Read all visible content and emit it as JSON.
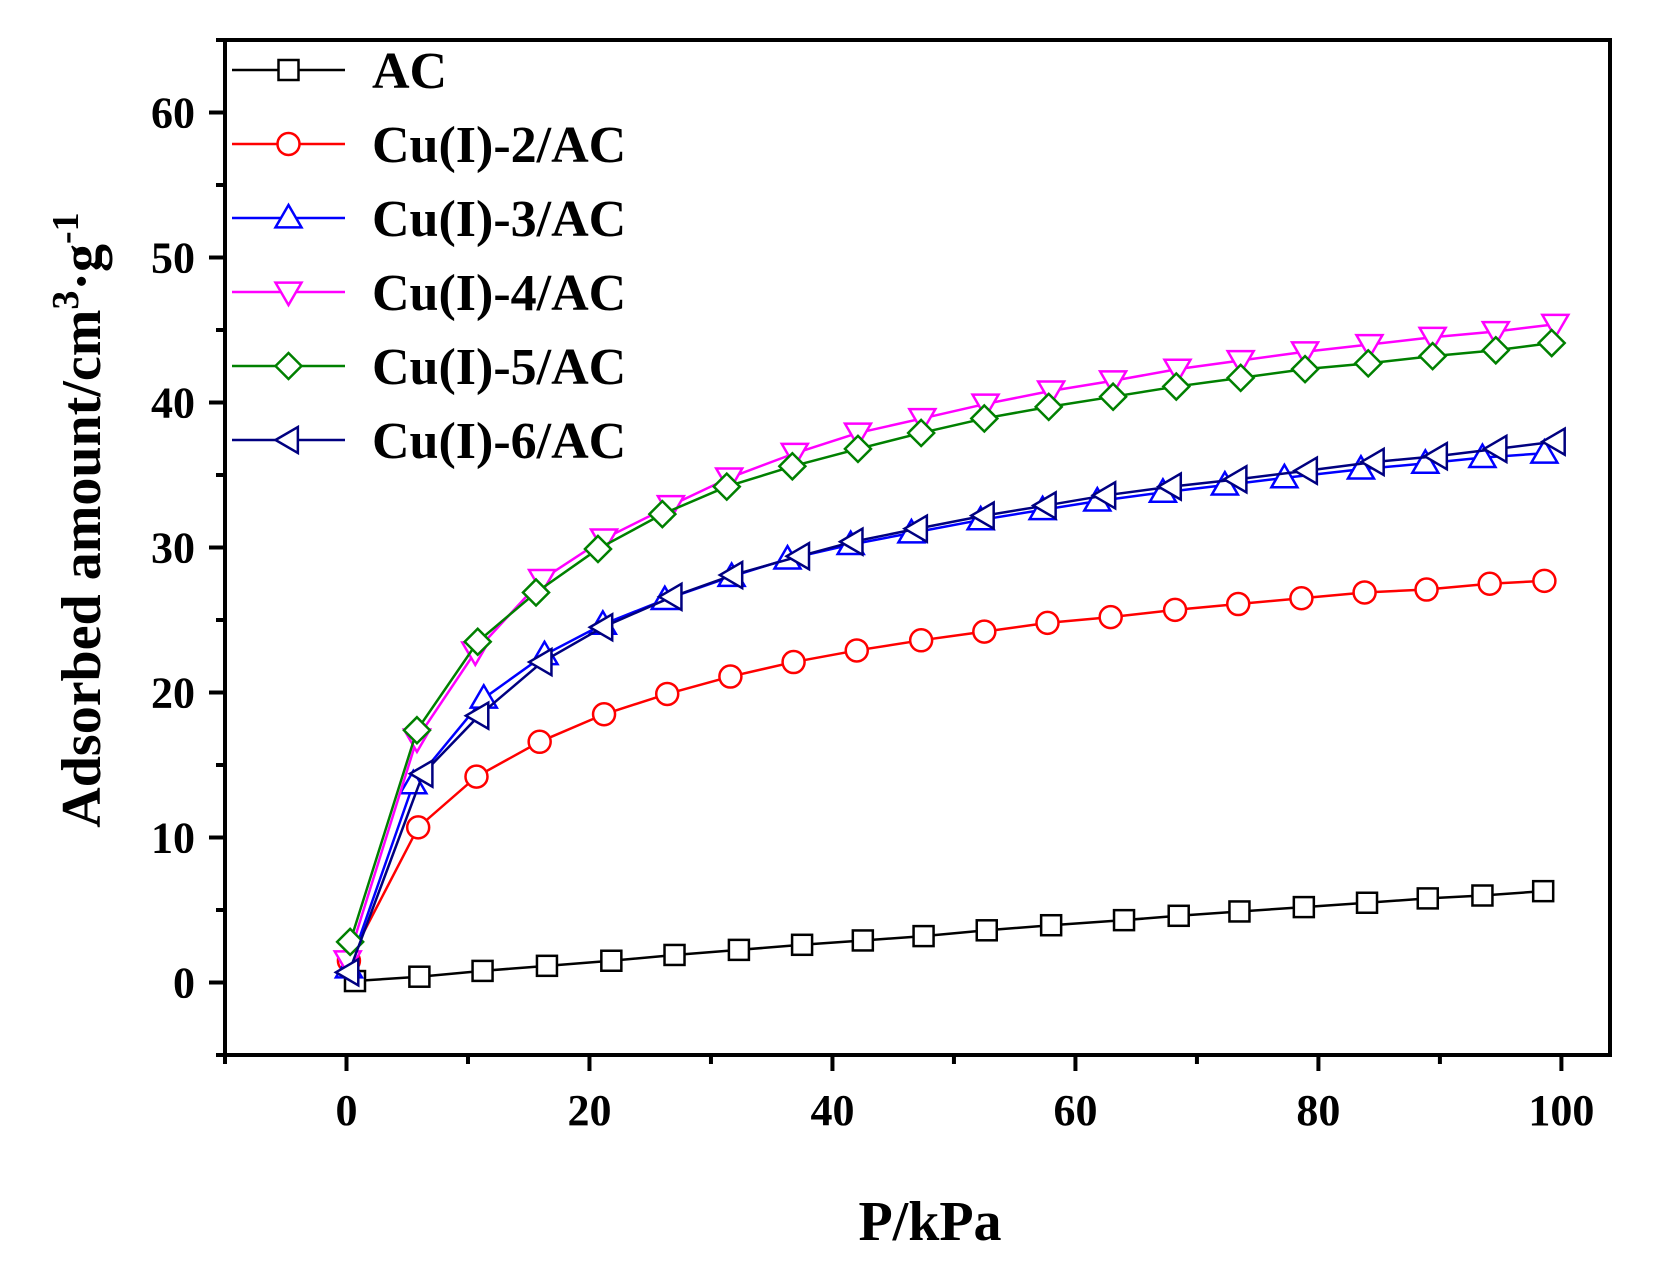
{
  "chart_data": {
    "type": "line",
    "title": "",
    "xlabel": "P/kPa",
    "ylabel": {
      "main": "Adsorbed amount/cm",
      "sup1": "3",
      "mid": "·g",
      "sup2": "-1"
    },
    "xlim": [
      -10,
      104
    ],
    "ylim": [
      -5,
      65
    ],
    "xticks": [
      0,
      20,
      40,
      60,
      80,
      100
    ],
    "yticks": [
      0,
      10,
      20,
      30,
      40,
      50,
      60
    ],
    "legend_position": "top-left",
    "grid": false,
    "series": [
      {
        "name": "AC",
        "color": "#000000",
        "marker": "square",
        "x": [
          0.7,
          6,
          11.2,
          16.5,
          21.8,
          27,
          32.3,
          37.5,
          42.5,
          47.5,
          52.7,
          58,
          64,
          68.5,
          73.5,
          78.8,
          84,
          89,
          93.5,
          98.5
        ],
        "y": [
          0.1,
          0.4,
          0.8,
          1.15,
          1.5,
          1.9,
          2.25,
          2.6,
          2.9,
          3.2,
          3.6,
          3.95,
          4.3,
          4.6,
          4.9,
          5.2,
          5.5,
          5.8,
          6.0,
          6.3
        ]
      },
      {
        "name": "Cu(I)-2/AC",
        "color": "#ff0000",
        "marker": "circle",
        "x": [
          0.2,
          5.9,
          10.7,
          15.9,
          21.2,
          26.4,
          31.6,
          36.8,
          42,
          47.3,
          52.5,
          57.7,
          62.9,
          68.2,
          73.4,
          78.6,
          83.8,
          88.9,
          94.1,
          98.6
        ],
        "y": [
          1.5,
          10.7,
          14.2,
          16.6,
          18.5,
          19.9,
          21.1,
          22.1,
          22.9,
          23.6,
          24.2,
          24.8,
          25.2,
          25.7,
          26.1,
          26.5,
          26.9,
          27.1,
          27.5,
          27.7
        ]
      },
      {
        "name": "Cu(I)-3/AC",
        "color": "#0000ff",
        "marker": "triangle-up",
        "x": [
          0.2,
          5.5,
          11.3,
          16.3,
          21.1,
          26.2,
          31.7,
          36.3,
          41.5,
          46.5,
          52.2,
          57.3,
          61.8,
          67.2,
          72.3,
          77.2,
          83.5,
          88.8,
          93.5,
          98.6
        ],
        "y": [
          1.0,
          13.7,
          19.6,
          22.6,
          24.7,
          26.4,
          28.0,
          29.2,
          30.2,
          31.0,
          31.9,
          32.6,
          33.2,
          33.8,
          34.3,
          34.8,
          35.4,
          35.8,
          36.2,
          36.5
        ]
      },
      {
        "name": "Cu(I)-4/AC",
        "color": "#ff00ff",
        "marker": "triangle-down",
        "x": [
          0.1,
          5.8,
          10.6,
          16.1,
          21.2,
          26.7,
          31.5,
          36.9,
          42.1,
          47.4,
          52.6,
          58,
          63.1,
          68.4,
          73.6,
          78.9,
          84.2,
          89.4,
          94.6,
          99.5
        ],
        "y": [
          1.5,
          16.8,
          22.8,
          27.8,
          30.6,
          32.9,
          34.8,
          36.5,
          37.9,
          38.9,
          39.9,
          40.8,
          41.5,
          42.3,
          42.9,
          43.5,
          44.0,
          44.5,
          44.9,
          45.4
        ]
      },
      {
        "name": "Cu(I)-5/AC",
        "color": "#008000",
        "marker": "diamond",
        "x": [
          0.3,
          5.8,
          10.8,
          15.6,
          20.7,
          26,
          31.3,
          36.7,
          42.1,
          47.3,
          52.5,
          57.8,
          63.1,
          68.3,
          73.6,
          78.9,
          84.1,
          89.4,
          94.6,
          99.2
        ],
        "y": [
          2.8,
          17.4,
          23.5,
          26.9,
          29.9,
          32.3,
          34.2,
          35.6,
          36.8,
          37.9,
          38.9,
          39.7,
          40.4,
          41.1,
          41.7,
          42.3,
          42.7,
          43.2,
          43.6,
          44.1
        ]
      },
      {
        "name": "Cu(I)-6/AC",
        "color": "#000080",
        "marker": "triangle-left",
        "x": [
          0.2,
          6.3,
          10.9,
          16.1,
          21.1,
          26.8,
          31.8,
          37.3,
          41.7,
          47,
          52.5,
          57.6,
          62.5,
          67.9,
          73.3,
          79.1,
          84.6,
          89.8,
          94.7,
          99.5
        ],
        "y": [
          0.7,
          14.4,
          18.4,
          22.1,
          24.5,
          26.6,
          28.1,
          29.4,
          30.4,
          31.3,
          32.2,
          32.9,
          33.6,
          34.2,
          34.7,
          35.3,
          35.9,
          36.3,
          36.8,
          37.3
        ]
      }
    ]
  }
}
